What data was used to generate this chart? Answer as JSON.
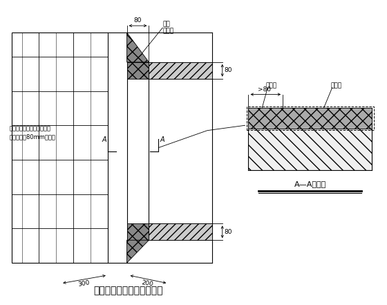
{
  "title": "门窗洞口附加网络布示意图",
  "bg_color": "#ffffff",
  "line_color": "#000000",
  "label_80_top": "80",
  "label_fj": "附加",
  "label_wgb": "网格布",
  "label_left1": "与墙体接触一面用粘结砂浆",
  "label_left2": "预粘不小于80mm网格布",
  "label_300": "300",
  "label_200": "200",
  "label_80_right1": "80",
  "label_80_right2": "80",
  "label_gt80": ">80",
  "label_wgb2": "网格布",
  "label_jsb": "挤塑板",
  "label_AA": "A—A剖面图",
  "label_A1": "A",
  "label_A2": "A"
}
